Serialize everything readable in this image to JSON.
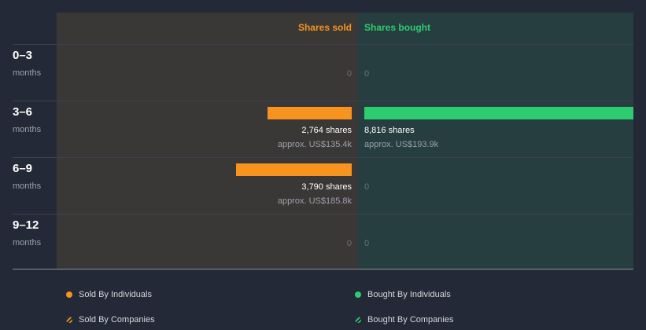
{
  "chart_data": {
    "type": "bar",
    "headers": {
      "sold": "Shares sold",
      "bought": "Shares bought"
    },
    "categories": [
      {
        "label": "0–3",
        "unit": "months"
      },
      {
        "label": "3–6",
        "unit": "months"
      },
      {
        "label": "6–9",
        "unit": "months"
      },
      {
        "label": "9–12",
        "unit": "months"
      }
    ],
    "series": [
      {
        "name": "Shares sold",
        "values": [
          0,
          2764,
          3790,
          0
        ],
        "value_labels": [
          "0",
          "2,764 shares",
          "3,790 shares",
          "0"
        ],
        "approx_labels": [
          "",
          "approx. US$135.4k",
          "approx. US$185.8k",
          ""
        ]
      },
      {
        "name": "Shares bought",
        "values": [
          0,
          8816,
          0,
          0
        ],
        "value_labels": [
          "0",
          "8,816 shares",
          "0",
          "0"
        ],
        "approx_labels": [
          "",
          "approx. US$193.9k",
          "",
          ""
        ]
      }
    ],
    "xlim": [
      0,
      8816
    ],
    "colors": {
      "sold": "#f7931e",
      "bought": "#2ecc71"
    },
    "legend": [
      {
        "label": "Sold By Individuals",
        "color": "#f7931e",
        "style": "solid"
      },
      {
        "label": "Bought By Individuals",
        "color": "#2ecc71",
        "style": "solid"
      },
      {
        "label": "Sold By Companies",
        "color": "#f7931e",
        "style": "hatched"
      },
      {
        "label": "Bought By Companies",
        "color": "#2ecc71",
        "style": "hatched"
      }
    ],
    "legend_position": "bottom"
  }
}
